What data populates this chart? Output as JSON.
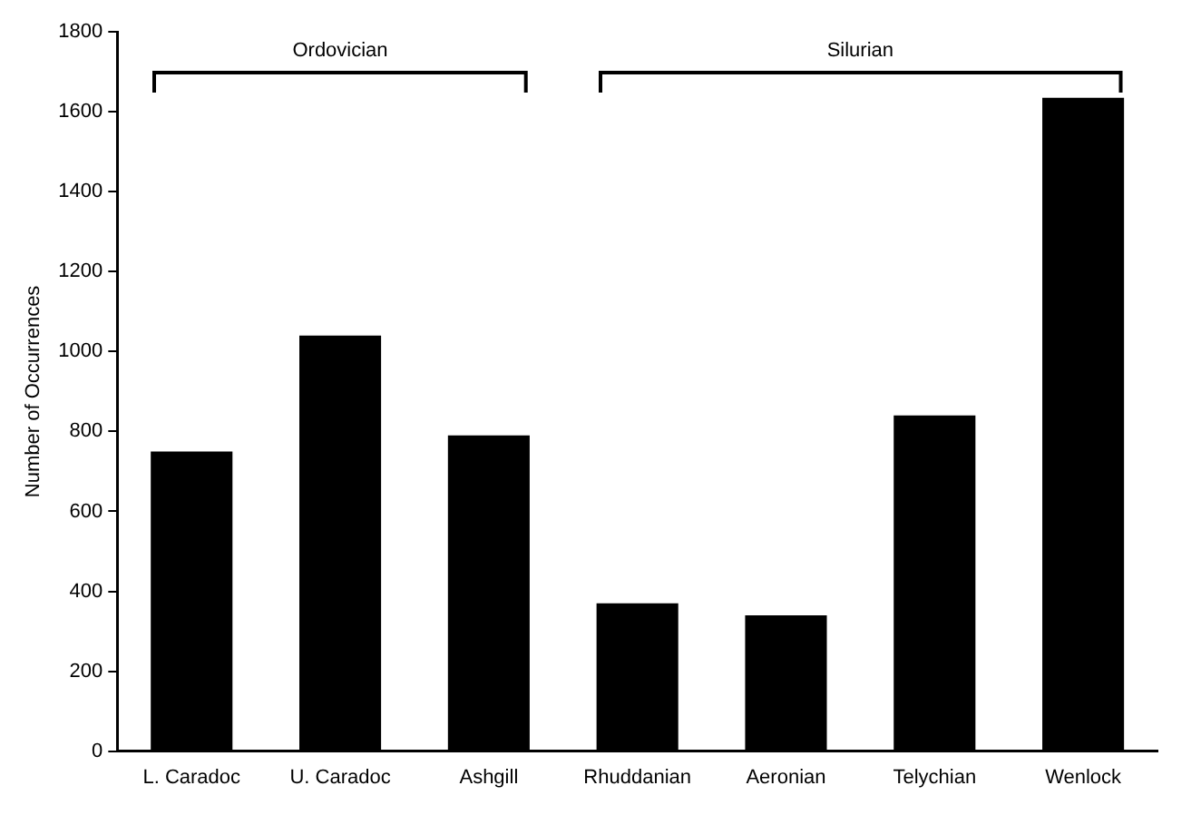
{
  "chart_data": {
    "type": "bar",
    "ylabel": "Number of Occurrences",
    "categories": [
      "L. Caradoc",
      "U. Caradoc",
      "Ashgill",
      "Rhuddanian",
      "Aeronian",
      "Telychian",
      "Wenlock"
    ],
    "values": [
      750,
      1040,
      790,
      370,
      340,
      840,
      1635
    ],
    "color": "#000000",
    "ylim": [
      0,
      1800
    ],
    "yticks": [
      0,
      200,
      400,
      600,
      800,
      1000,
      1200,
      1400,
      1600,
      1800
    ],
    "grid": false,
    "legend": false,
    "annotations": [
      "Ordovician",
      "Silurian"
    ]
  }
}
